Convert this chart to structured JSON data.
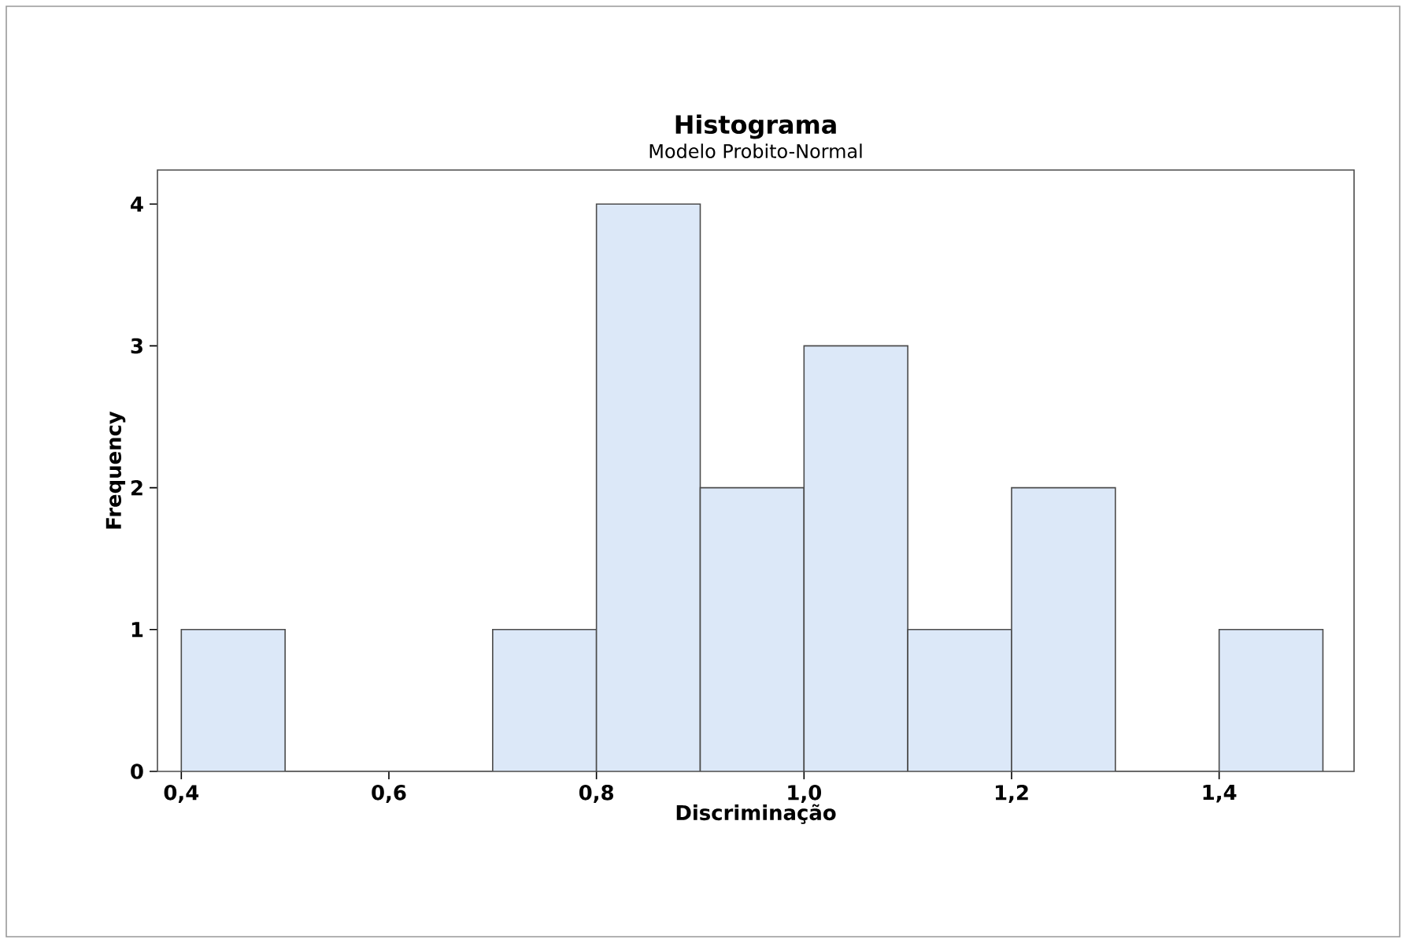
{
  "chart_data": {
    "type": "histogram",
    "title": "Histograma",
    "subtitle": "Modelo Probito-Normal",
    "xlabel": "Discriminação",
    "ylabel": "Frequency",
    "bins": [
      0.4,
      0.5,
      0.6,
      0.7,
      0.8,
      0.9,
      1.0,
      1.1,
      1.2,
      1.3,
      1.4,
      1.5
    ],
    "values": [
      1,
      0,
      0,
      1,
      4,
      2,
      3,
      1,
      2,
      0,
      1
    ],
    "color": "#dce8f8",
    "xlim": [
      0.377,
      1.53
    ],
    "ylim": [
      0,
      4.24
    ],
    "xticks": [
      {
        "value": 0.4,
        "label": "0,4"
      },
      {
        "value": 0.6,
        "label": "0,6"
      },
      {
        "value": 0.8,
        "label": "0,8"
      },
      {
        "value": 1.0,
        "label": "1,0"
      },
      {
        "value": 1.2,
        "label": "1,2"
      },
      {
        "value": 1.4,
        "label": "1,4"
      }
    ],
    "yticks": [
      0,
      1,
      2,
      3,
      4
    ]
  }
}
